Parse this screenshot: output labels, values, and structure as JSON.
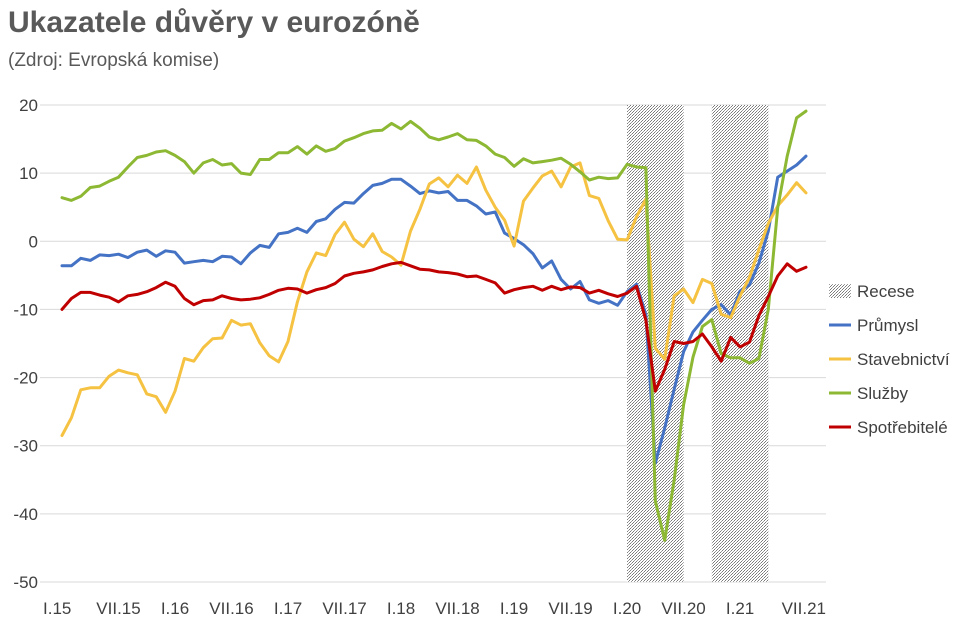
{
  "chart_data": {
    "type": "line",
    "title": "Ukazatele důvěry v eurozóně",
    "subtitle": "(Zdroj: Evropská komise)",
    "xlabel": "",
    "ylabel": "",
    "ylim": [
      -50,
      20
    ],
    "yticks": [
      20,
      10,
      0,
      -10,
      -20,
      -30,
      -40,
      -50
    ],
    "ytick_labels": [
      "20",
      "10",
      "0",
      "-10",
      "-20",
      "-30",
      "-40",
      "-50"
    ],
    "xtick_labels": [
      "I.15",
      "VII.15",
      "I.16",
      "VII.16",
      "I.17",
      "VII.17",
      "I.18",
      "VII.18",
      "I.19",
      "VII.19",
      "I.20",
      "VII.20",
      "I.21",
      "VII.21"
    ],
    "x_start": "2015-01",
    "x_end": "2021-08",
    "grid": "horizontal",
    "legend_position": "right",
    "recessions": [
      {
        "start": "2020-01",
        "end": "2020-07"
      },
      {
        "start": "2020-10",
        "end": "2021-04"
      }
    ],
    "legend_colors": {
      "Recese": "#888888"
    },
    "series": [
      {
        "name": "Průmysl",
        "color": "#4472C4",
        "values": [
          -3.6,
          -3.6,
          -2.5,
          -2.8,
          -2.0,
          -2.1,
          -1.9,
          -2.4,
          -1.6,
          -1.3,
          -2.2,
          -1.4,
          -1.6,
          -3.2,
          -3.0,
          -2.8,
          -3.0,
          -2.2,
          -2.3,
          -3.3,
          -1.7,
          -0.6,
          -0.9,
          1.1,
          1.3,
          1.9,
          1.3,
          2.9,
          3.3,
          4.7,
          5.7,
          5.6,
          7.0,
          8.2,
          8.5,
          9.1,
          9.1,
          8.1,
          7.0,
          7.4,
          7.1,
          7.3,
          6.0,
          6.0,
          5.2,
          4.0,
          4.3,
          1.2,
          0.4,
          -0.5,
          -1.8,
          -3.9,
          -2.9,
          -5.6,
          -7.0,
          -5.9,
          -8.6,
          -9.1,
          -8.7,
          -9.4,
          -7.4,
          -6.3,
          -10.8,
          -32.6,
          -27.4,
          -21.7,
          -16.2,
          -13.3,
          -11.6,
          -10.0,
          -9.3,
          -10.8,
          -7.3,
          -6.4,
          -3.2,
          1.5,
          9.4,
          10.3,
          11.2,
          12.5
        ]
      },
      {
        "name": "Stavebnictví",
        "color": "#F5C242",
        "values": [
          -28.5,
          -25.9,
          -21.8,
          -21.5,
          -21.5,
          -19.8,
          -18.9,
          -19.3,
          -19.6,
          -22.4,
          -22.8,
          -25.1,
          -22.0,
          -17.2,
          -17.6,
          -15.6,
          -14.3,
          -14.2,
          -11.6,
          -12.3,
          -12.1,
          -14.9,
          -16.8,
          -17.7,
          -14.7,
          -8.9,
          -4.5,
          -1.7,
          -2.1,
          1.0,
          2.8,
          0.3,
          -0.8,
          1.1,
          -1.5,
          -2.3,
          -3.5,
          1.5,
          4.7,
          8.4,
          9.3,
          8.0,
          9.7,
          8.5,
          10.9,
          7.5,
          5.0,
          3.1,
          -0.7,
          5.9,
          7.8,
          9.6,
          10.3,
          8.0,
          10.9,
          11.5,
          6.7,
          6.3,
          3.0,
          0.3,
          0.2,
          3.6,
          6.2,
          -15.7,
          -17.3,
          -8.0,
          -7.0,
          -9.0,
          -5.6,
          -6.2,
          -10.7,
          -11.2,
          -8.0,
          -5.3,
          -1.2,
          2.6,
          5.2,
          6.8,
          8.6,
          7.1
        ]
      },
      {
        "name": "Služby",
        "color": "#8DB833",
        "values": [
          6.4,
          6.0,
          6.6,
          7.9,
          8.1,
          8.8,
          9.4,
          10.9,
          12.3,
          12.6,
          13.1,
          13.3,
          12.6,
          11.7,
          10.0,
          11.5,
          12.0,
          11.2,
          11.4,
          10.0,
          9.8,
          12.0,
          12.0,
          13.0,
          13.0,
          13.9,
          12.8,
          14.0,
          13.2,
          13.6,
          14.7,
          15.2,
          15.8,
          16.2,
          16.3,
          17.3,
          16.5,
          17.6,
          16.6,
          15.3,
          14.9,
          15.3,
          15.8,
          14.9,
          14.8,
          14.0,
          12.8,
          12.3,
          11.0,
          12.1,
          11.5,
          11.7,
          11.9,
          12.2,
          11.3,
          10.2,
          9.0,
          9.4,
          9.2,
          9.3,
          11.3,
          10.9,
          10.8,
          -38.1,
          -43.9,
          -35.0,
          -24.0,
          -17.0,
          -12.5,
          -11.5,
          -16.5,
          -17.1,
          -17.1,
          -17.9,
          -17.2,
          -10.0,
          4.9,
          12.5,
          18.1,
          19.1
        ]
      },
      {
        "name": "Spotřebitelé",
        "color": "#C00000",
        "values": [
          -10.0,
          -8.4,
          -7.5,
          -7.5,
          -7.9,
          -8.2,
          -8.9,
          -8.0,
          -7.8,
          -7.4,
          -6.8,
          -6.0,
          -6.6,
          -8.4,
          -9.3,
          -8.7,
          -8.6,
          -8.0,
          -8.4,
          -8.6,
          -8.5,
          -8.3,
          -7.8,
          -7.2,
          -6.9,
          -7.0,
          -7.6,
          -7.1,
          -6.8,
          -6.2,
          -5.1,
          -4.7,
          -4.5,
          -4.2,
          -3.7,
          -3.3,
          -3.1,
          -3.6,
          -4.1,
          -4.2,
          -4.5,
          -4.6,
          -4.8,
          -5.2,
          -5.1,
          -5.6,
          -6.1,
          -7.6,
          -7.1,
          -6.8,
          -6.6,
          -7.2,
          -6.6,
          -7.1,
          -6.7,
          -6.8,
          -7.6,
          -7.2,
          -7.7,
          -8.1,
          -7.6,
          -6.6,
          -11.6,
          -22.0,
          -18.8,
          -14.7,
          -15.0,
          -14.7,
          -13.6,
          -15.5,
          -17.6,
          -14.1,
          -15.5,
          -14.8,
          -10.9,
          -8.1,
          -5.1,
          -3.3,
          -4.4,
          -3.8
        ]
      }
    ],
    "legend": [
      "Recese",
      "Průmysl",
      "Stavebnictví",
      "Služby",
      "Spotřebitelé"
    ]
  }
}
